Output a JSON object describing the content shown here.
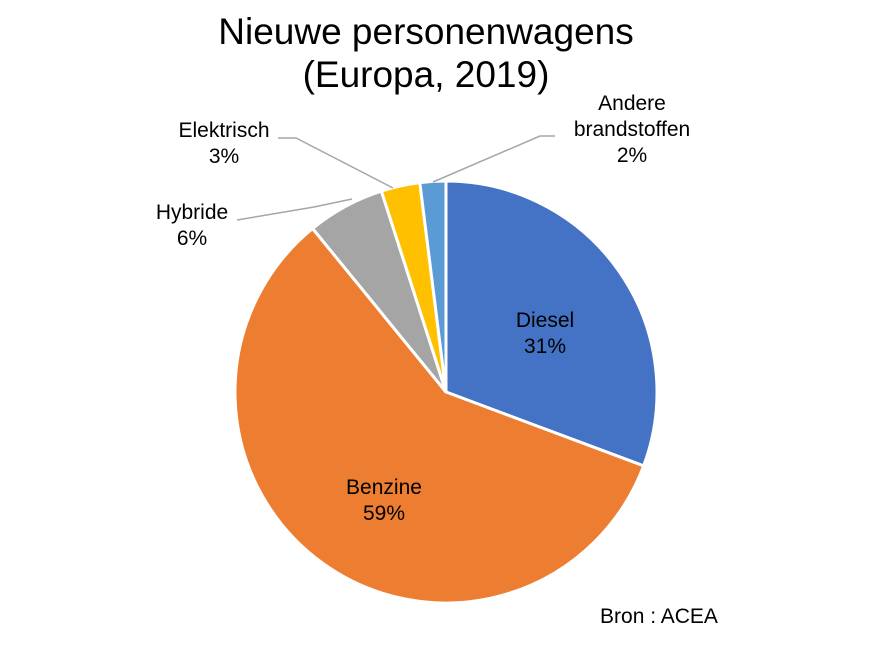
{
  "chart_data": {
    "type": "pie",
    "title": [
      "Nieuwe personenwagens",
      "(Europa, 2019)"
    ],
    "slices": [
      {
        "label": [
          "Diesel"
        ],
        "value": 31,
        "display": "31%",
        "color": "#4472c4"
      },
      {
        "label": [
          "Benzine"
        ],
        "value": 59,
        "display": "59%",
        "color": "#ed7d31"
      },
      {
        "label": [
          "Hybride"
        ],
        "value": 6,
        "display": "6%",
        "color": "#a5a5a5"
      },
      {
        "label": [
          "Elektrisch"
        ],
        "value": 3,
        "display": "3%",
        "color": "#ffc000"
      },
      {
        "label": [
          "Andere",
          "brandstoffen"
        ],
        "value": 2,
        "display": "2%",
        "color": "#5b9bd5"
      }
    ],
    "start_angle_deg": 0,
    "direction": "clockwise",
    "legend": "none"
  },
  "footer": {
    "source": "Bron : ACEA"
  }
}
